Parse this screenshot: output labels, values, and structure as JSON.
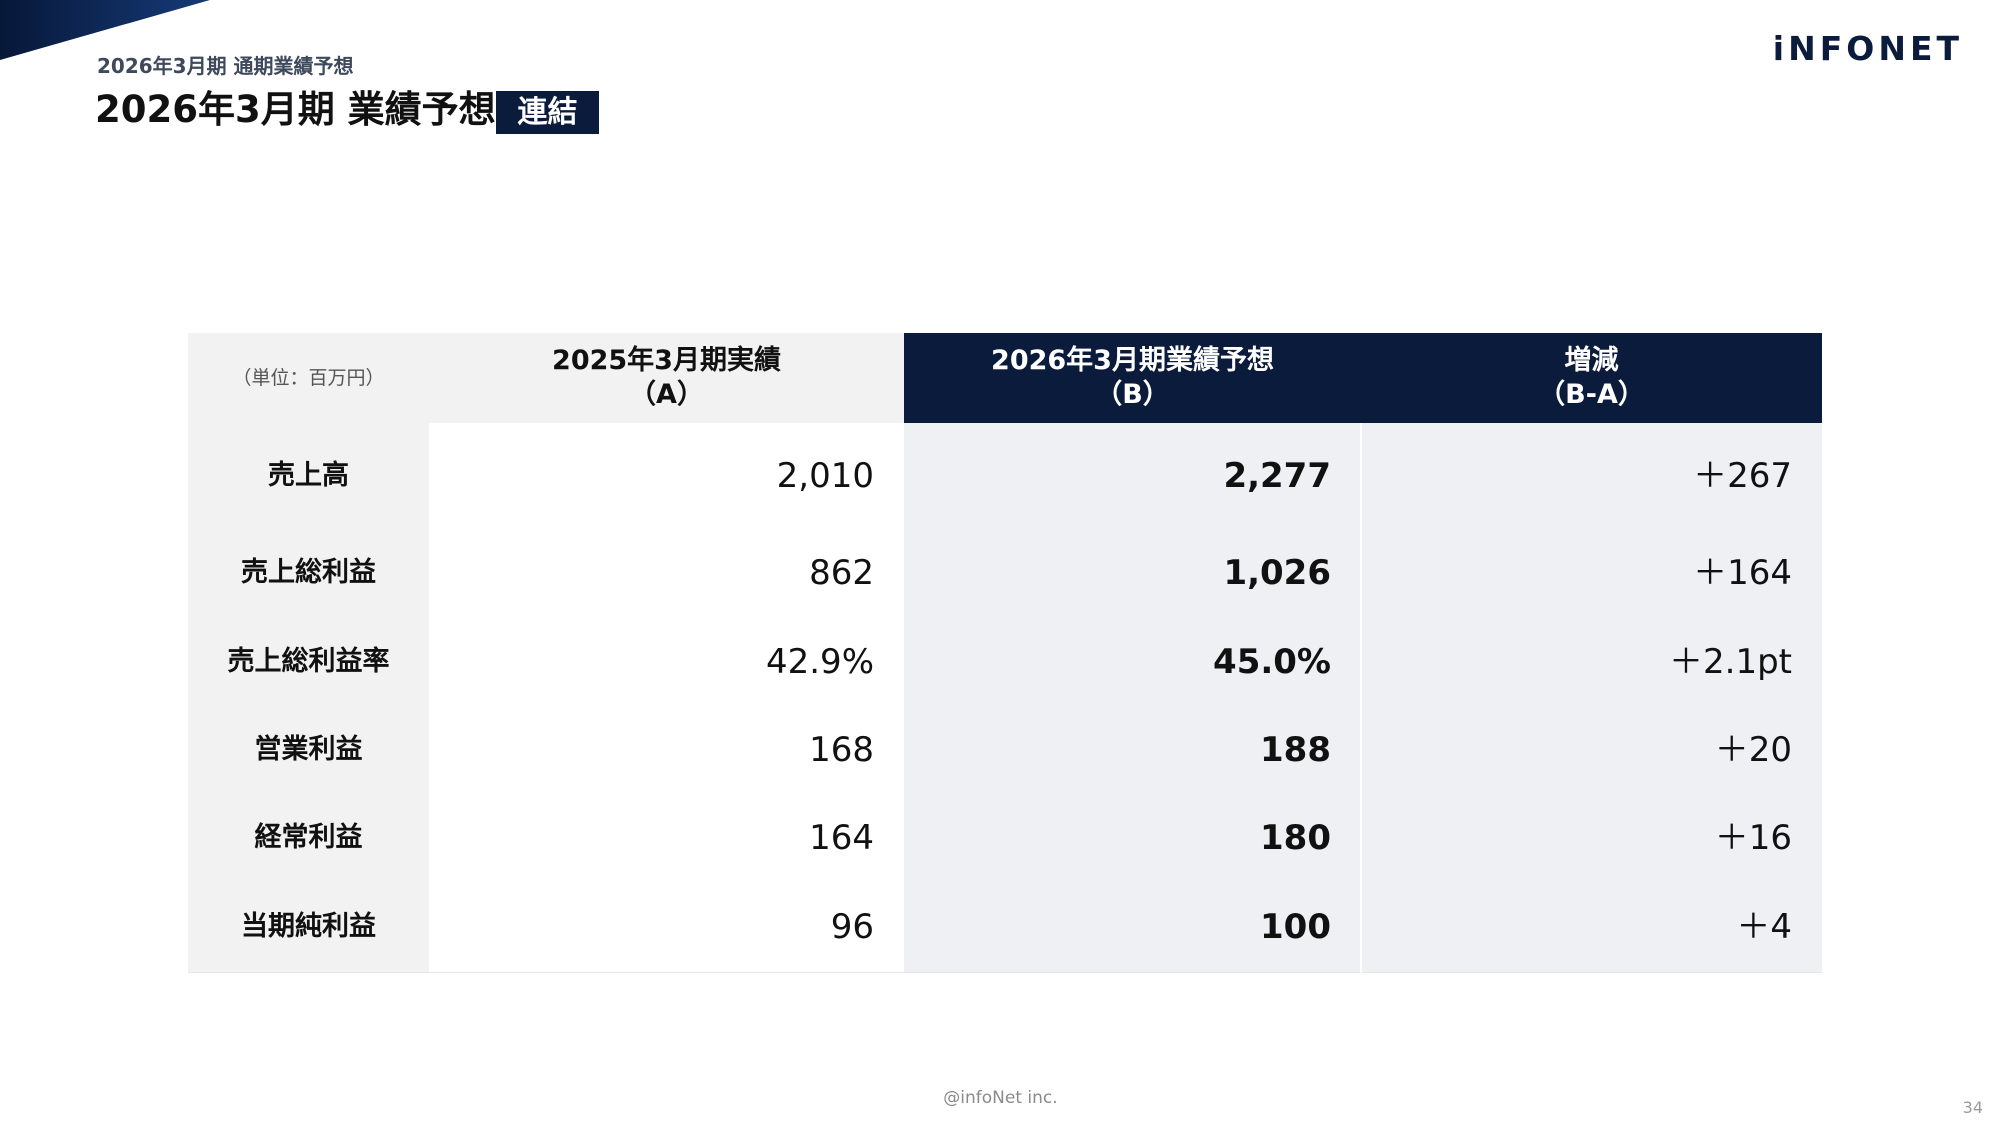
{
  "header": {
    "subtitle": "2026年3月期 通期業績予想",
    "title": "2026年3月期 業績予想",
    "badge": "連結",
    "logo": "iNFONET"
  },
  "table": {
    "unit": "（単位：百万円）",
    "columns": {
      "a_line1": "2025年3月期実績",
      "a_line2": "（A）",
      "b_line1": "2026年3月期業績予想",
      "b_line2": "（B）",
      "diff_line1": "増減",
      "diff_line2": "（B-A）"
    },
    "rows": [
      {
        "label": "売上高",
        "a": "2,010",
        "b": "2,277",
        "diff": "＋267"
      },
      {
        "label": "売上総利益",
        "a": "862",
        "b": "1,026",
        "diff": "＋164"
      },
      {
        "label": "売上総利益率",
        "a": "42.9%",
        "b": "45.0%",
        "diff": "＋2.1pt"
      },
      {
        "label": "営業利益",
        "a": "168",
        "b": "188",
        "diff": "＋20"
      },
      {
        "label": "経常利益",
        "a": "164",
        "b": "180",
        "diff": "＋16"
      },
      {
        "label": "当期純利益",
        "a": "96",
        "b": "100",
        "diff": "＋4"
      }
    ]
  },
  "footer": {
    "copyright": "@infoNet inc.",
    "page_number": "34"
  },
  "colors": {
    "navy": "#0b1b3c",
    "header_gray": "#f2f2f2",
    "forecast_bg": "#eef0f4"
  }
}
